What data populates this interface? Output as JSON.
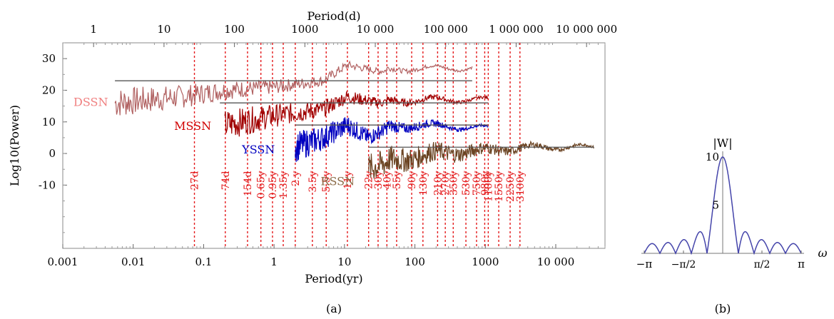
{
  "chart_data": [
    {
      "type": "line",
      "panel_label": "(a)",
      "xlabel_bottom": "Period(yr)",
      "xlabel_top": "Period(d)",
      "ylabel": "Log10(Power)",
      "x_scale": "log",
      "xlim": [
        0.001,
        50000
      ],
      "ylim": [
        -30,
        35
      ],
      "bottom_ticks": [
        "0.001",
        "0.01",
        "0.1",
        "1",
        "10",
        "100",
        "1000",
        "10 000"
      ],
      "bottom_tick_values": [
        0.001,
        0.01,
        0.1,
        1,
        10,
        100,
        1000,
        10000
      ],
      "top_ticks": [
        "1",
        "10",
        "100",
        "1000",
        "10 000",
        "100 000",
        "1 000 000",
        "10 000 000"
      ],
      "top_tick_values_days": [
        1,
        10,
        100,
        1000,
        10000,
        100000,
        1000000,
        10000000
      ],
      "y_ticks": [
        30,
        20,
        10,
        0,
        -10
      ],
      "period_lines": [
        {
          "label": "27d",
          "years": 0.074
        },
        {
          "label": "74d",
          "years": 0.203
        },
        {
          "label": "154d",
          "years": 0.42
        },
        {
          "label": "0.65y",
          "years": 0.65
        },
        {
          "label": "0.95y",
          "years": 0.95
        },
        {
          "label": "1.35y",
          "years": 1.35
        },
        {
          "label": "2.y",
          "years": 2.0
        },
        {
          "label": "3.5y",
          "years": 3.5
        },
        {
          "label": "5.5y",
          "years": 5.5
        },
        {
          "label": "11y",
          "years": 11
        },
        {
          "label": "22y",
          "years": 22
        },
        {
          "label": "30y",
          "years": 30
        },
        {
          "label": "40y",
          "years": 40
        },
        {
          "label": "55y",
          "years": 55
        },
        {
          "label": "90y",
          "years": 90
        },
        {
          "label": "130y",
          "years": 130
        },
        {
          "label": "210y",
          "years": 210
        },
        {
          "label": "270y",
          "years": 270
        },
        {
          "label": "350y",
          "years": 350
        },
        {
          "label": "530y",
          "years": 530
        },
        {
          "label": "750y",
          "years": 750
        },
        {
          "label": "980y",
          "years": 980
        },
        {
          "label": "1100y",
          "years": 1100
        },
        {
          "label": "1550y",
          "years": 1550
        },
        {
          "label": "2250y",
          "years": 2250
        },
        {
          "label": "3100y",
          "years": 3100
        }
      ],
      "series": [
        {
          "name": "DSSN",
          "color": "#b06060",
          "label_color": "#f08080",
          "xrange": [
            0.0055,
            650
          ],
          "base": [
            [
              0.0055,
              16
            ],
            [
              0.05,
              18
            ],
            [
              0.2,
              20
            ],
            [
              1,
              21
            ],
            [
              5,
              23
            ],
            [
              11,
              28
            ],
            [
              30,
              26
            ],
            [
              100,
              27
            ],
            [
              650,
              27
            ]
          ],
          "threshold": 23,
          "threshold_xrange": [
            0.0055,
            650
          ]
        },
        {
          "name": "MSSN",
          "color": "#a00000",
          "label_color": "#d00000",
          "xrange": [
            0.2,
            1100
          ],
          "base": [
            [
              0.2,
              9
            ],
            [
              1,
              12
            ],
            [
              5,
              14
            ],
            [
              11,
              18
            ],
            [
              30,
              16
            ],
            [
              100,
              17
            ],
            [
              1100,
              17
            ]
          ],
          "threshold": 16,
          "threshold_xrange": [
            0.17,
            1100
          ]
        },
        {
          "name": "YSSN",
          "color": "#0000c0",
          "label_color": "#0000c0",
          "xrange": [
            2,
            1100
          ],
          "base": [
            [
              2,
              2
            ],
            [
              5,
              5
            ],
            [
              11,
              9
            ],
            [
              22,
              5
            ],
            [
              40,
              8
            ],
            [
              100,
              9
            ],
            [
              1100,
              8
            ]
          ],
          "threshold": 9,
          "threshold_xrange": [
            2,
            1100
          ]
        },
        {
          "name": "RSSN",
          "color": "#6b4423",
          "label_color": "#8b6b47",
          "xrange": [
            22,
            35000
          ],
          "base": [
            [
              22,
              -5
            ],
            [
              50,
              -2
            ],
            [
              200,
              0
            ],
            [
              1000,
              1
            ],
            [
              5000,
              2
            ],
            [
              35000,
              2
            ]
          ],
          "threshold": 2,
          "threshold_xrange": [
            22,
            35000
          ]
        }
      ]
    },
    {
      "type": "line",
      "panel_label": "(b)",
      "title": "|W|",
      "xlabel": "ω",
      "xlim": [
        -3.14159,
        3.14159
      ],
      "ylim": [
        0,
        10
      ],
      "x_ticks": [
        "−π",
        "−π/2",
        "π/2",
        "π"
      ],
      "y_ticks": [
        "10",
        "5"
      ],
      "series": [
        {
          "name": "",
          "color": "#4444aa",
          "function": "abs_dirichlet_N10"
        }
      ]
    }
  ]
}
